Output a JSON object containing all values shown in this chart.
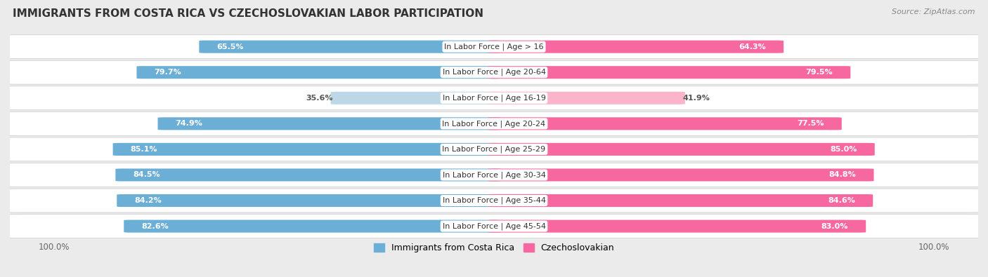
{
  "title": "IMMIGRANTS FROM COSTA RICA VS CZECHOSLOVAKIAN LABOR PARTICIPATION",
  "source": "Source: ZipAtlas.com",
  "categories": [
    "In Labor Force | Age > 16",
    "In Labor Force | Age 20-64",
    "In Labor Force | Age 16-19",
    "In Labor Force | Age 20-24",
    "In Labor Force | Age 25-29",
    "In Labor Force | Age 30-34",
    "In Labor Force | Age 35-44",
    "In Labor Force | Age 45-54"
  ],
  "costa_rica_values": [
    65.5,
    79.7,
    35.6,
    74.9,
    85.1,
    84.5,
    84.2,
    82.6
  ],
  "czechoslovakian_values": [
    64.3,
    79.5,
    41.9,
    77.5,
    85.0,
    84.8,
    84.6,
    83.0
  ],
  "costa_rica_color": "#6BAED6",
  "costa_rica_color_light": "#BDD7E7",
  "czechoslovakian_color": "#F768A1",
  "czechoslovakian_color_light": "#FBB4CA",
  "background_color": "#EBEBEB",
  "row_bg_color": "#FFFFFF",
  "max_value": 100.0,
  "label_fontsize": 8.0,
  "title_fontsize": 11,
  "source_fontsize": 8,
  "legend_fontsize": 9,
  "bottom_label": "100.0%"
}
